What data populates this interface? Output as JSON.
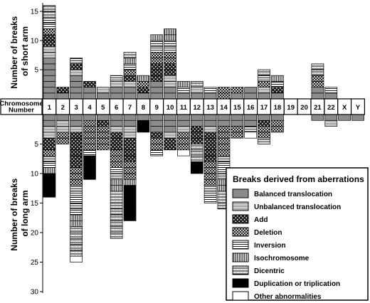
{
  "chart_data": {
    "type": "bar",
    "stacked": true,
    "categories": [
      "1",
      "2",
      "3",
      "4",
      "5",
      "6",
      "7",
      "8",
      "9",
      "10",
      "11",
      "12",
      "13",
      "14",
      "15",
      "16",
      "17",
      "18",
      "19",
      "20",
      "21",
      "22",
      "X",
      "Y"
    ],
    "category_header": "Chromosome Number",
    "ylabel_top": "Number of breaks of short arm",
    "ylabel_bottom": "Number of breaks of long arm",
    "top_ticks": [
      5,
      10,
      15
    ],
    "bottom_ticks": [
      5,
      10,
      15,
      20,
      25,
      30
    ],
    "top_ylim": [
      0,
      16
    ],
    "bottom_ylim": [
      0,
      30
    ],
    "grid": false,
    "legend": {
      "title": "Breaks derived from aberrations",
      "placement": "bottom-right",
      "items": [
        {
          "key": "balanced",
          "label": "Balanced translocation"
        },
        {
          "key": "unbalanced",
          "label": "Unbalanced translocation"
        },
        {
          "key": "add",
          "label": "Add"
        },
        {
          "key": "deletion",
          "label": "Deletion"
        },
        {
          "key": "inversion",
          "label": "Inversion"
        },
        {
          "key": "isochromosome",
          "label": "Isochromosome"
        },
        {
          "key": "dicentric",
          "label": "Dicentric"
        },
        {
          "key": "duplication",
          "label": "Duplication or triplication"
        },
        {
          "key": "other",
          "label": "Other abnormalities"
        }
      ]
    },
    "short_arm": [
      {
        "balanced": 7,
        "unbalanced": 2,
        "add": 2,
        "deletion": 1,
        "inversion": 2,
        "dicentric": 2
      },
      {
        "balanced": 1,
        "add": 1
      },
      {
        "balanced": 4,
        "unbalanced": 1,
        "add": 1,
        "inversion": 1
      },
      {
        "balanced": 2,
        "add": 1
      },
      {
        "balanced": 1,
        "unbalanced": 1
      },
      {
        "balanced": 2,
        "unbalanced": 1,
        "inversion": 1
      },
      {
        "balanced": 2,
        "unbalanced": 1,
        "add": 1,
        "deletion": 1,
        "inversion": 1,
        "isochromosome": 1,
        "dicentric": 1
      },
      {
        "balanced": 1,
        "add": 1,
        "deletion": 1,
        "isochromosome": 1
      },
      {
        "balanced": 3,
        "add": 3,
        "deletion": 2,
        "inversion": 2,
        "isochromosome": 1
      },
      {
        "balanced": 2,
        "unbalanced": 2,
        "add": 2,
        "deletion": 2,
        "inversion": 2,
        "isochromosome": 2
      },
      {
        "balanced": 1,
        "inversion": 1,
        "isochromosome": 1
      },
      {
        "balanced": 1,
        "unbalanced": 1,
        "dicentric": 1
      },
      {
        "balanced": 1,
        "inversion": 1
      },
      {
        "deletion": 2
      },
      {
        "balanced": 1,
        "deletion": 1
      },
      {
        "balanced": 2
      },
      {
        "balanced": 1,
        "unbalanced": 1,
        "deletion": 1,
        "inversion": 1,
        "dicentric": 1
      },
      {
        "balanced": 1,
        "add": 1,
        "inversion": 1,
        "isochromosome": 1
      },
      {},
      {},
      {
        "balanced": 2,
        "deletion": 2,
        "dicentric": 2
      },
      {
        "balanced": 1,
        "inversion": 1
      },
      {},
      {}
    ],
    "long_arm": [
      {
        "balanced": 2,
        "unbalanced": 2,
        "add": 2,
        "deletion": 1,
        "inversion": 2,
        "duplication": 4,
        "isochromosome": 1
      },
      {
        "balanced": 1,
        "unbalanced": 2,
        "deletion": 2
      },
      {
        "balanced": 2,
        "unbalanced": 1,
        "inversion": 5,
        "deletion": 3,
        "add": 6,
        "dicentric": 5,
        "isochromosome": 2,
        "other": 1
      },
      {
        "balanced": 1,
        "inversion": 1,
        "deletion": 5,
        "duplication": 4
      },
      {
        "balanced": 1,
        "add": 1,
        "deletion": 4
      },
      {
        "balanced": 2,
        "unbalanced": 1,
        "deletion": 3,
        "add": 3,
        "dicentric": 8,
        "isochromosome": 2,
        "inversion": 2
      },
      {
        "balanced": 2,
        "unbalanced": 2,
        "deletion": 3,
        "add": 4,
        "duplication": 6,
        "isochromosome": 1
      },
      {
        "balanced": 1,
        "duplication": 2
      },
      {
        "balanced": 3,
        "deletion": 2,
        "inversion": 1,
        "add": 1
      },
      {
        "balanced": 3,
        "unbalanced": 1,
        "add": 2
      },
      {
        "balanced": 2,
        "unbalanced": 1,
        "deletion": 3,
        "other": 1
      },
      {
        "balanced": 2,
        "add": 3,
        "dicentric": 3,
        "duplication": 2
      },
      {
        "balanced": 2,
        "unbalanced": 1,
        "inversion": 3,
        "deletion": 4,
        "add": 5
      },
      {
        "balanced": 2,
        "deletion": 5,
        "dicentric": 3,
        "isochromosome": 2,
        "inversion": 4
      },
      {
        "balanced": 2,
        "deletion": 2
      },
      {
        "balanced": 2,
        "inversion": 1,
        "other": 1
      },
      {
        "balanced": 1,
        "deletion": 2,
        "add": 1,
        "inversion": 1
      },
      {
        "balanced": 1,
        "deletion": 2
      },
      {},
      {},
      {
        "balanced": 1
      },
      {
        "balanced": 1,
        "unbalanced": 1
      },
      {
        "balanced": 1
      },
      {
        "balanced": 1
      }
    ]
  }
}
